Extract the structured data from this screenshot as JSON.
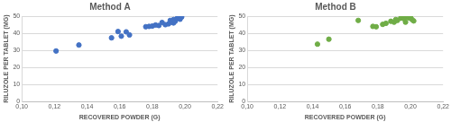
{
  "chart_data": [
    {
      "type": "scatter",
      "title": "Method A",
      "x_label": "RECOVERED POWDER (G)",
      "y_label": "RILUZOLE PER TABLET (MG)",
      "x": [
        0.121,
        0.135,
        0.155,
        0.159,
        0.161,
        0.164,
        0.166,
        0.176,
        0.178,
        0.18,
        0.182,
        0.184,
        0.186,
        0.188,
        0.19,
        0.191,
        0.192,
        0.193,
        0.193,
        0.194,
        0.195,
        0.196,
        0.197,
        0.198
      ],
      "values": [
        29.6,
        33.1,
        37.3,
        41.0,
        38.3,
        40.8,
        39.0,
        43.8,
        44.0,
        44.2,
        44.8,
        44.5,
        46.3,
        45.0,
        45.5,
        47.5,
        46.5,
        48.0,
        46.0,
        47.0,
        48.5,
        49.0,
        48.2,
        49.5
      ],
      "color": "#4472c4",
      "marker": "circle",
      "xlim": [
        0.1,
        0.22
      ],
      "xticks": [
        {
          "value": 0.1,
          "label": "0,10"
        },
        {
          "value": 0.12,
          "label": "0,12"
        },
        {
          "value": 0.14,
          "label": "0,14"
        },
        {
          "value": 0.16,
          "label": "0,16"
        },
        {
          "value": 0.18,
          "label": "0,18"
        },
        {
          "value": 0.2,
          "label": "0,20"
        },
        {
          "value": 0.22,
          "label": "0,22"
        }
      ],
      "ylim": [
        0,
        50
      ],
      "yticks": [
        0,
        10,
        20,
        30,
        40,
        50
      ],
      "grid": true
    },
    {
      "type": "scatter",
      "title": "Method B",
      "x_label": "RECOVERED POWDER (G)",
      "y_label": "RILUZOLE PER TABLET (MG)",
      "x": [
        0.143,
        0.15,
        0.168,
        0.177,
        0.179,
        0.183,
        0.185,
        0.188,
        0.19,
        0.191,
        0.192,
        0.194,
        0.195,
        0.196,
        0.197,
        0.197,
        0.198,
        0.199,
        0.2,
        0.201,
        0.202
      ],
      "values": [
        33.6,
        36.5,
        47.5,
        44.0,
        43.8,
        45.2,
        45.8,
        47.0,
        46.5,
        48.0,
        47.5,
        48.8,
        49.2,
        48.5,
        49.5,
        46.5,
        49.8,
        49.0,
        49.5,
        48.0,
        47.2
      ],
      "color": "#70ad47",
      "marker": "circle",
      "xlim": [
        0.1,
        0.22
      ],
      "xticks": [
        {
          "value": 0.1,
          "label": "0,10"
        },
        {
          "value": 0.12,
          "label": "0,12"
        },
        {
          "value": 0.14,
          "label": "0,14"
        },
        {
          "value": 0.16,
          "label": "0,16"
        },
        {
          "value": 0.18,
          "label": "0,18"
        },
        {
          "value": 0.2,
          "label": "0,20"
        },
        {
          "value": 0.22,
          "label": "0,22"
        }
      ],
      "ylim": [
        0,
        50
      ],
      "yticks": [
        0,
        10,
        20,
        30,
        40,
        50
      ],
      "grid": true
    }
  ]
}
